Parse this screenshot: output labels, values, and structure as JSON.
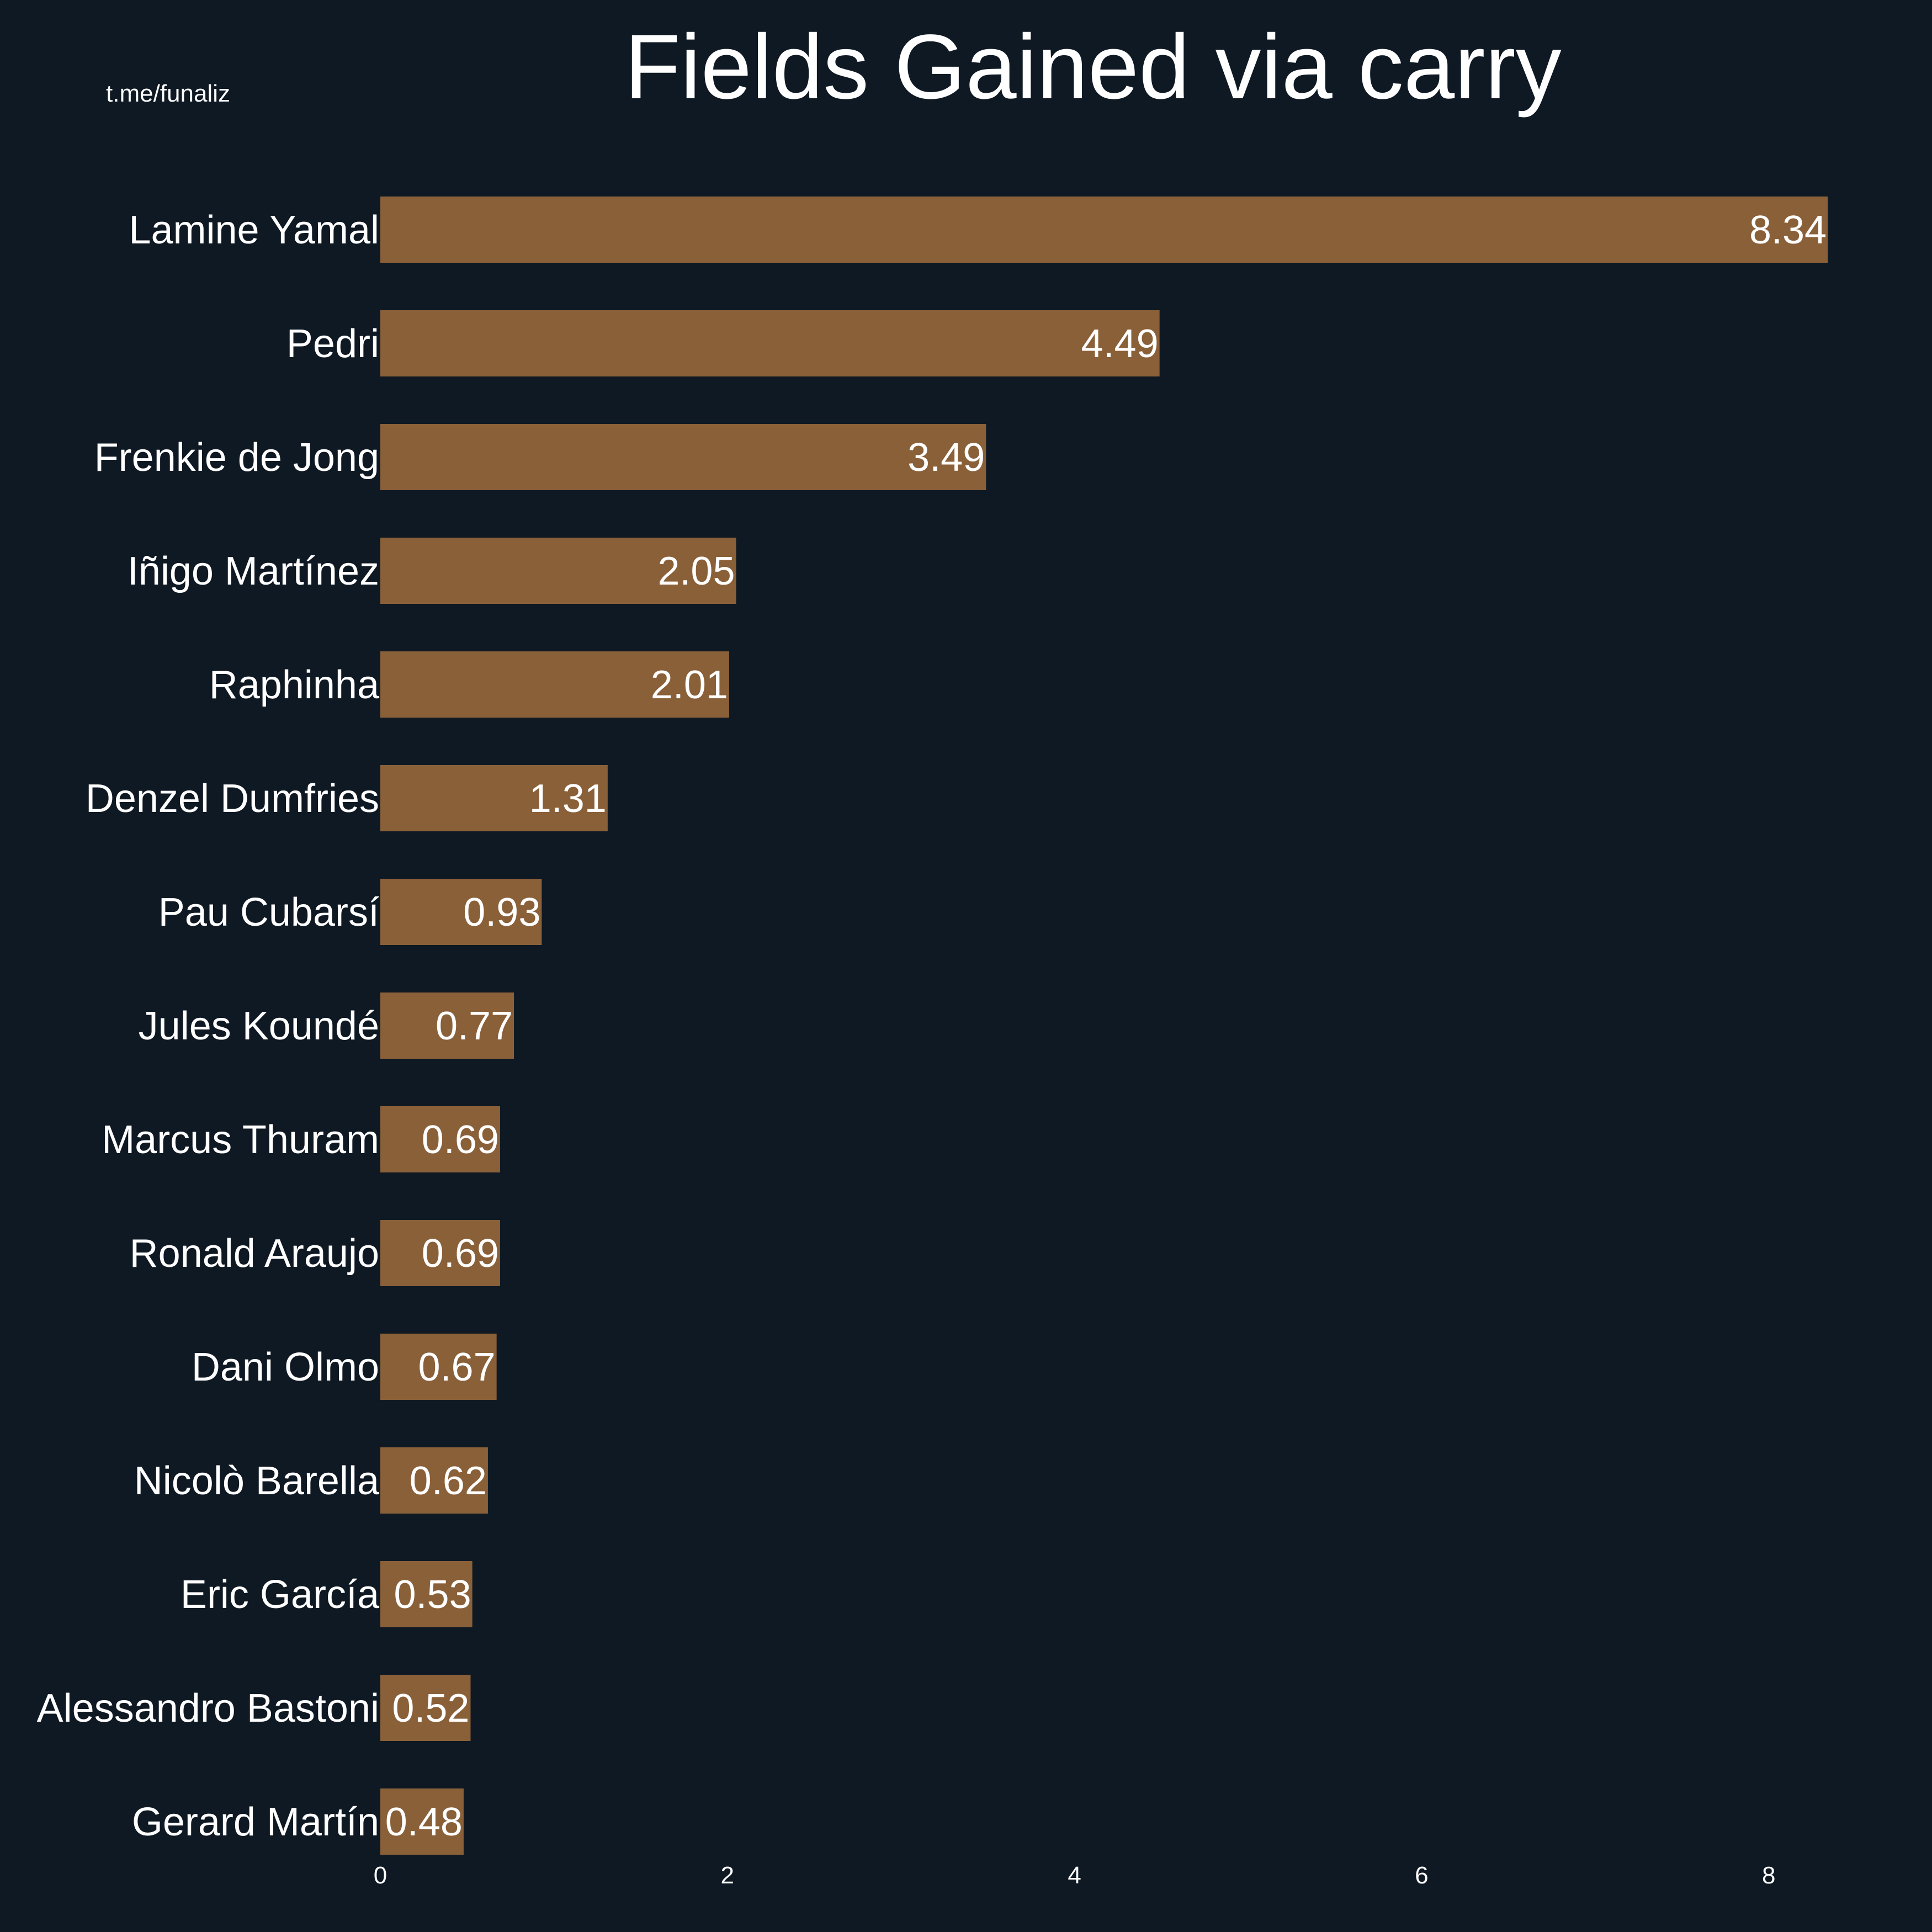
{
  "credit": "t.me/funaliz",
  "colors": {
    "background": "#0f1923",
    "bar": "#8a6039",
    "text": "#ffffff"
  },
  "chart_data": {
    "type": "bar",
    "orientation": "horizontal",
    "title": "Fields Gained via carry",
    "xlabel": "",
    "ylabel": "",
    "xlim": [
      0,
      8.6
    ],
    "xticks": [
      0,
      2,
      4,
      6,
      8
    ],
    "grid": false,
    "categories": [
      "Lamine Yamal",
      "Pedri",
      "Frenkie de Jong",
      "Iñigo Martínez",
      "Raphinha",
      "Denzel Dumfries",
      "Pau Cubarsí",
      "Jules Koundé",
      "Marcus Thuram",
      "Ronald Araujo",
      "Dani Olmo",
      "Nicolò Barella",
      "Eric García",
      "Alessandro Bastoni",
      "Gerard Martín"
    ],
    "values": [
      8.34,
      4.49,
      3.49,
      2.05,
      2.01,
      1.31,
      0.93,
      0.77,
      0.69,
      0.69,
      0.67,
      0.62,
      0.53,
      0.52,
      0.48
    ],
    "value_labels": [
      "8.34",
      "4.49",
      "3.49",
      "2.05",
      "2.01",
      "1.31",
      "0.93",
      "0.77",
      "0.69",
      "0.69",
      "0.67",
      "0.62",
      "0.53",
      "0.52",
      "0.48"
    ]
  }
}
